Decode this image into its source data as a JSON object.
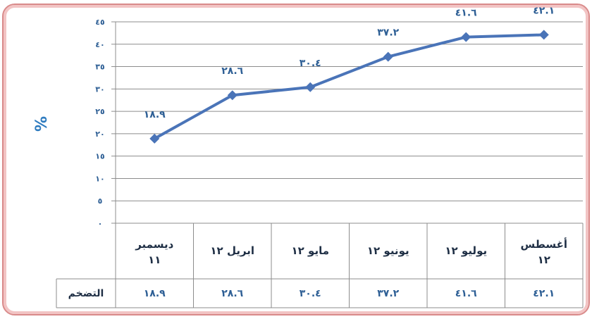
{
  "chart_data": {
    "type": "line",
    "ylabel": "%",
    "yticks": [
      "٠",
      "٥",
      "١٠",
      "١٥",
      "٢٠",
      "٢٥",
      "٣٠",
      "٣٥",
      "٤٠",
      "٤٥"
    ],
    "ylim": [
      0,
      45
    ],
    "grid": true,
    "categories": [
      {
        "line1": "ديسمبر",
        "line2": "١١"
      },
      {
        "line1": "ابريل ١٢",
        "line2": ""
      },
      {
        "line1": "مايو ١٢",
        "line2": ""
      },
      {
        "line1": "يونيو ١٢",
        "line2": ""
      },
      {
        "line1": "يوليو ١٢",
        "line2": ""
      },
      {
        "line1": "أغسطس",
        "line2": "١٢"
      }
    ],
    "values": [
      18.9,
      28.6,
      30.4,
      37.2,
      41.6,
      42.1
    ],
    "value_labels": [
      "١٨.٩",
      "٢٨.٦",
      "٣٠.٤",
      "٣٧.٢",
      "٤١.٦",
      "٤٢.١"
    ],
    "data_table": {
      "row_label": "التضخم",
      "values": [
        "١٨.٩",
        "٢٨.٦",
        "٣٠.٤",
        "٣٧.٢",
        "٤١.٦",
        "٤٢.١"
      ]
    },
    "colors": {
      "line": "#4a74b8",
      "marker": "#4a74b8",
      "text": "#2e5f95"
    }
  }
}
